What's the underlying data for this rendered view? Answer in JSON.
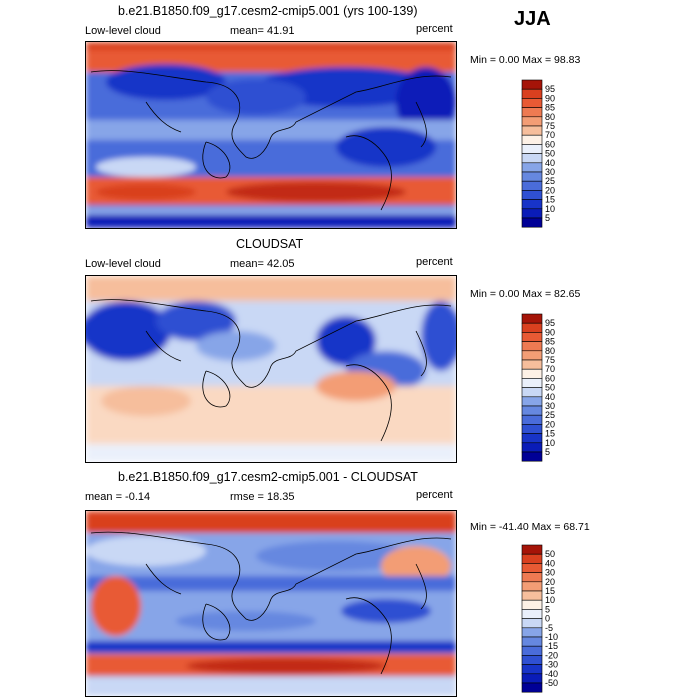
{
  "season": "JJA",
  "colors": {
    "pos": [
      "#fdf1e6",
      "#fad9c2",
      "#f6be9c",
      "#f39d75",
      "#ee7a52",
      "#e85a34",
      "#d9401f",
      "#c22a12",
      "#a51408",
      "#800000"
    ],
    "neg": [
      "#eaf0fb",
      "#c9d8f5",
      "#a8bfef",
      "#87a5e8",
      "#6688e0",
      "#4a6cda",
      "#2f50d2",
      "#1834c8",
      "#0a1cb8",
      "#000096"
    ]
  },
  "panels": [
    {
      "title": "b.e21.B1850.f09_g17.cesm2-cmip5.001 (yrs 100-139)",
      "left_label": "Low-level cloud",
      "mid_label": "mean=  41.91",
      "right_label": "percent",
      "minmax": "Min =    0.00 Max =  98.83",
      "colorbar_ticks": [
        "95",
        "90",
        "85",
        "80",
        "75",
        "70",
        "60",
        "50",
        "40",
        "30",
        "25",
        "20",
        "15",
        "10",
        "5"
      ],
      "colors": [
        "#000096",
        "#0a1cb8",
        "#1834c8",
        "#2f50d2",
        "#4a6cda",
        "#6688e0",
        "#87a5e8",
        "#c9d8f5",
        "#eaf0fb",
        "#fdf1e6",
        "#f6be9c",
        "#f39d75",
        "#ee7a52",
        "#e85a34",
        "#d9401f",
        "#a51408"
      ]
    },
    {
      "title": "CLOUDSAT",
      "left_label": "Low-level cloud",
      "mid_label": "mean=  42.05",
      "right_label": "percent",
      "minmax": "Min =    0.00 Max =  82.65",
      "colorbar_ticks": [
        "95",
        "90",
        "85",
        "80",
        "75",
        "70",
        "60",
        "50",
        "40",
        "30",
        "25",
        "20",
        "15",
        "10",
        "5"
      ],
      "colors": [
        "#000096",
        "#0a1cb8",
        "#1834c8",
        "#2f50d2",
        "#4a6cda",
        "#6688e0",
        "#87a5e8",
        "#c9d8f5",
        "#eaf0fb",
        "#fdf1e6",
        "#f6be9c",
        "#f39d75",
        "#ee7a52",
        "#e85a34",
        "#d9401f",
        "#a51408"
      ]
    },
    {
      "title": "b.e21.B1850.f09_g17.cesm2-cmip5.001 - CLOUDSAT",
      "left_label": "mean =   -0.14",
      "mid_label": "rmse =  18.35",
      "right_label": "percent",
      "minmax": "Min = -41.40 Max =  68.71",
      "colorbar_ticks": [
        "50",
        "40",
        "30",
        "20",
        "15",
        "10",
        "5",
        "0",
        "-5",
        "-10",
        "-15",
        "-20",
        "-30",
        "-40",
        "-50"
      ],
      "colors": [
        "#000096",
        "#0a1cb8",
        "#1834c8",
        "#2f50d2",
        "#4a6cda",
        "#6688e0",
        "#87a5e8",
        "#c9d8f5",
        "#eaf0fb",
        "#fdf1e6",
        "#f6be9c",
        "#f39d75",
        "#ee7a52",
        "#e85a34",
        "#d9401f",
        "#a51408"
      ]
    }
  ]
}
